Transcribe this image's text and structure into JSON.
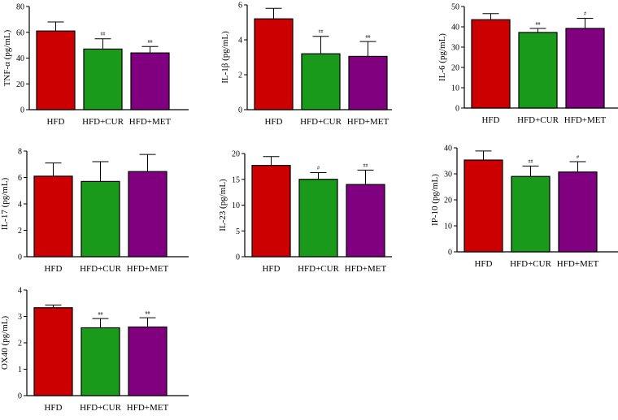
{
  "colors": {
    "HFD": "#cc0000",
    "HFD+CUR": "#1a9a1a",
    "HFD+MET": "#800080",
    "axis": "#000000"
  },
  "chart_data": [
    {
      "type": "bar",
      "ylabel": "TNF-α (pg/mL)",
      "ylim": [
        0,
        80
      ],
      "yticks": [
        0,
        20,
        40,
        60,
        80
      ],
      "categories": [
        "HFD",
        "HFD+CUR",
        "HFD+MET"
      ],
      "values": [
        61,
        47,
        44
      ],
      "errors": [
        7,
        8,
        5
      ],
      "sig": [
        "",
        "##",
        "##"
      ]
    },
    {
      "type": "bar",
      "ylabel": "IL-1β (pg/mL)",
      "ylim": [
        0,
        6
      ],
      "yticks": [
        0,
        2,
        4,
        6
      ],
      "categories": [
        "HFD",
        "HFD+CUR",
        "HFD+MET"
      ],
      "values": [
        5.2,
        3.2,
        3.05
      ],
      "errors": [
        0.6,
        1.0,
        0.85
      ],
      "sig": [
        "",
        "##",
        "##"
      ]
    },
    {
      "type": "bar",
      "ylabel": "IL-6 (pg/mL)",
      "ylim": [
        0,
        50
      ],
      "yticks": [
        0,
        10,
        20,
        30,
        40,
        50
      ],
      "categories": [
        "HFD",
        "HFD+CUR",
        "HFD+MET"
      ],
      "values": [
        43.5,
        37.2,
        39.2
      ],
      "errors": [
        3,
        2,
        5
      ],
      "sig": [
        "",
        "##",
        "#"
      ]
    },
    {
      "type": "bar",
      "ylabel": "IL-17 (pg/mL)",
      "ylim": [
        0,
        8
      ],
      "yticks": [
        0,
        2,
        4,
        6,
        8
      ],
      "categories": [
        "HFD",
        "HFD+CUR",
        "HFD+MET"
      ],
      "values": [
        6.1,
        5.7,
        6.45
      ],
      "errors": [
        1.0,
        1.5,
        1.3
      ],
      "sig": [
        "",
        "",
        ""
      ]
    },
    {
      "type": "bar",
      "ylabel": "IL-23 (pg/mL)",
      "ylim": [
        0,
        20
      ],
      "yticks": [
        0,
        5,
        10,
        15,
        20
      ],
      "categories": [
        "HFD",
        "HFD+CUR",
        "HFD+MET"
      ],
      "values": [
        17.7,
        15.0,
        14.0
      ],
      "errors": [
        1.7,
        1.3,
        2.8
      ],
      "sig": [
        "",
        "#",
        "##"
      ]
    },
    {
      "type": "bar",
      "ylabel": "IP-10 (pg/mL)",
      "ylim": [
        0,
        40
      ],
      "yticks": [
        0,
        10,
        20,
        30,
        40
      ],
      "categories": [
        "HFD",
        "HFD+CUR",
        "HFD+MET"
      ],
      "values": [
        35.3,
        29.0,
        30.7
      ],
      "errors": [
        3.5,
        4,
        4
      ],
      "sig": [
        "",
        "##",
        "#"
      ]
    },
    {
      "type": "bar",
      "ylabel": "OX40 (pg/mL)",
      "ylim": [
        0,
        4
      ],
      "yticks": [
        0,
        1,
        2,
        3,
        4
      ],
      "categories": [
        "HFD",
        "HFD+CUR",
        "HFD+MET"
      ],
      "values": [
        3.33,
        2.57,
        2.6
      ],
      "errors": [
        0.1,
        0.35,
        0.35
      ],
      "sig": [
        "",
        "##",
        "##"
      ]
    }
  ]
}
